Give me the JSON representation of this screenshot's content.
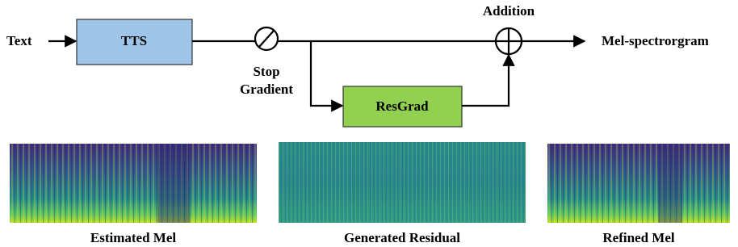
{
  "input": "Text",
  "output": "Mel-spectrorgram",
  "nodes": {
    "tts": "TTS",
    "resgrad": "ResGrad"
  },
  "operators": {
    "stop_gradient": [
      "Stop",
      "Gradient"
    ],
    "addition": "Addition"
  },
  "spectrograms": [
    "Estimated Mel",
    "Generated Residual",
    "Refined Mel"
  ]
}
